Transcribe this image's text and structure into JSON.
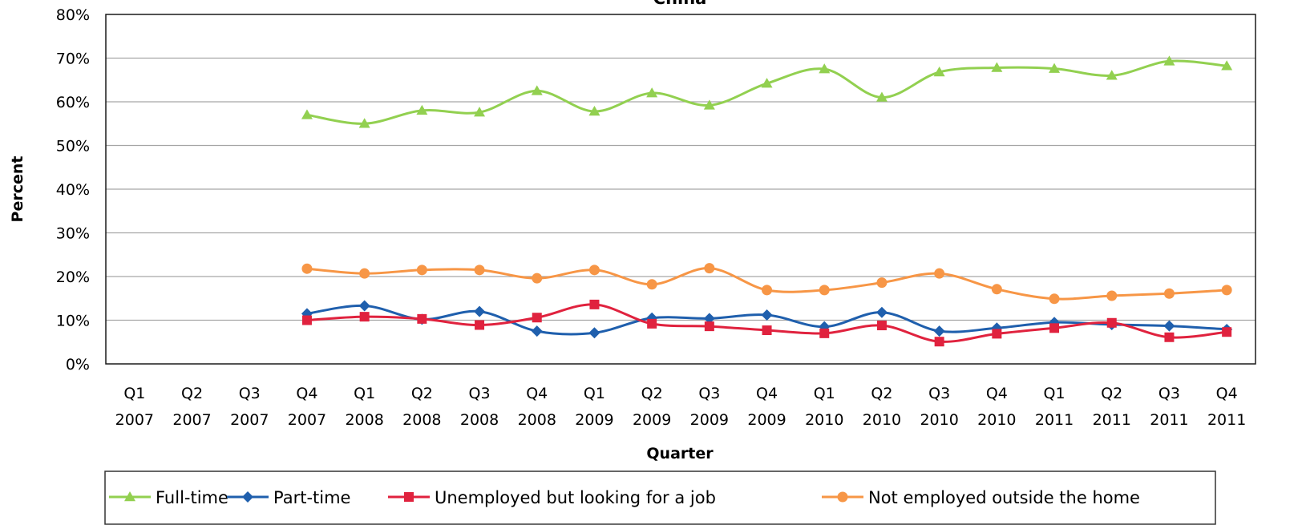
{
  "chart_data": {
    "type": "line",
    "title": "China",
    "xlabel": "Quarter",
    "ylabel": "Percent",
    "ylim": [
      0,
      80
    ],
    "y_ticks": [
      "0%",
      "10%",
      "20%",
      "30%",
      "40%",
      "50%",
      "60%",
      "70%",
      "80%"
    ],
    "grid": true,
    "legend_position": "bottom",
    "categories": [
      [
        "Q1",
        "2007"
      ],
      [
        "Q2",
        "2007"
      ],
      [
        "Q3",
        "2007"
      ],
      [
        "Q4",
        "2007"
      ],
      [
        "Q1",
        "2008"
      ],
      [
        "Q2",
        "2008"
      ],
      [
        "Q3",
        "2008"
      ],
      [
        "Q4",
        "2008"
      ],
      [
        "Q1",
        "2009"
      ],
      [
        "Q2",
        "2009"
      ],
      [
        "Q3",
        "2009"
      ],
      [
        "Q4",
        "2009"
      ],
      [
        "Q1",
        "2010"
      ],
      [
        "Q2",
        "2010"
      ],
      [
        "Q3",
        "2010"
      ],
      [
        "Q4",
        "2010"
      ],
      [
        "Q1",
        "2011"
      ],
      [
        "Q2",
        "2011"
      ],
      [
        "Q3",
        "2011"
      ],
      [
        "Q4",
        "2011"
      ]
    ],
    "series": [
      {
        "name": "Full-time",
        "color": "#92D050",
        "marker": "triangle",
        "values": [
          null,
          null,
          null,
          57,
          55,
          58,
          57.6,
          62.5,
          57.8,
          62,
          59.2,
          64.2,
          67.5,
          61,
          66.8,
          67.8,
          67.6,
          66,
          69.3,
          68.2
        ]
      },
      {
        "name": "Part-time",
        "color": "#1F5FAD",
        "marker": "diamond",
        "values": [
          null,
          null,
          null,
          11.5,
          13.3,
          10.2,
          12,
          7.5,
          7.1,
          10.5,
          10.4,
          11.2,
          8.5,
          11.8,
          7.5,
          8.2,
          9.5,
          9,
          8.7,
          7.9
        ]
      },
      {
        "name": "Unemployed but looking for a job",
        "color": "#E0223E",
        "marker": "square",
        "values": [
          null,
          null,
          null,
          10,
          10.8,
          10.3,
          8.9,
          10.6,
          13.6,
          9.2,
          8.6,
          7.7,
          7,
          8.8,
          5.1,
          6.9,
          8.2,
          9.4,
          6.1,
          7.3
        ]
      },
      {
        "name": "Not employed outside the home",
        "color": "#F79646",
        "marker": "circle",
        "values": [
          null,
          null,
          null,
          21.8,
          20.7,
          21.5,
          21.5,
          19.6,
          21.5,
          18.2,
          21.9,
          16.9,
          16.9,
          18.6,
          20.7,
          17.1,
          14.9,
          15.6,
          16.1,
          16.9
        ]
      }
    ]
  }
}
